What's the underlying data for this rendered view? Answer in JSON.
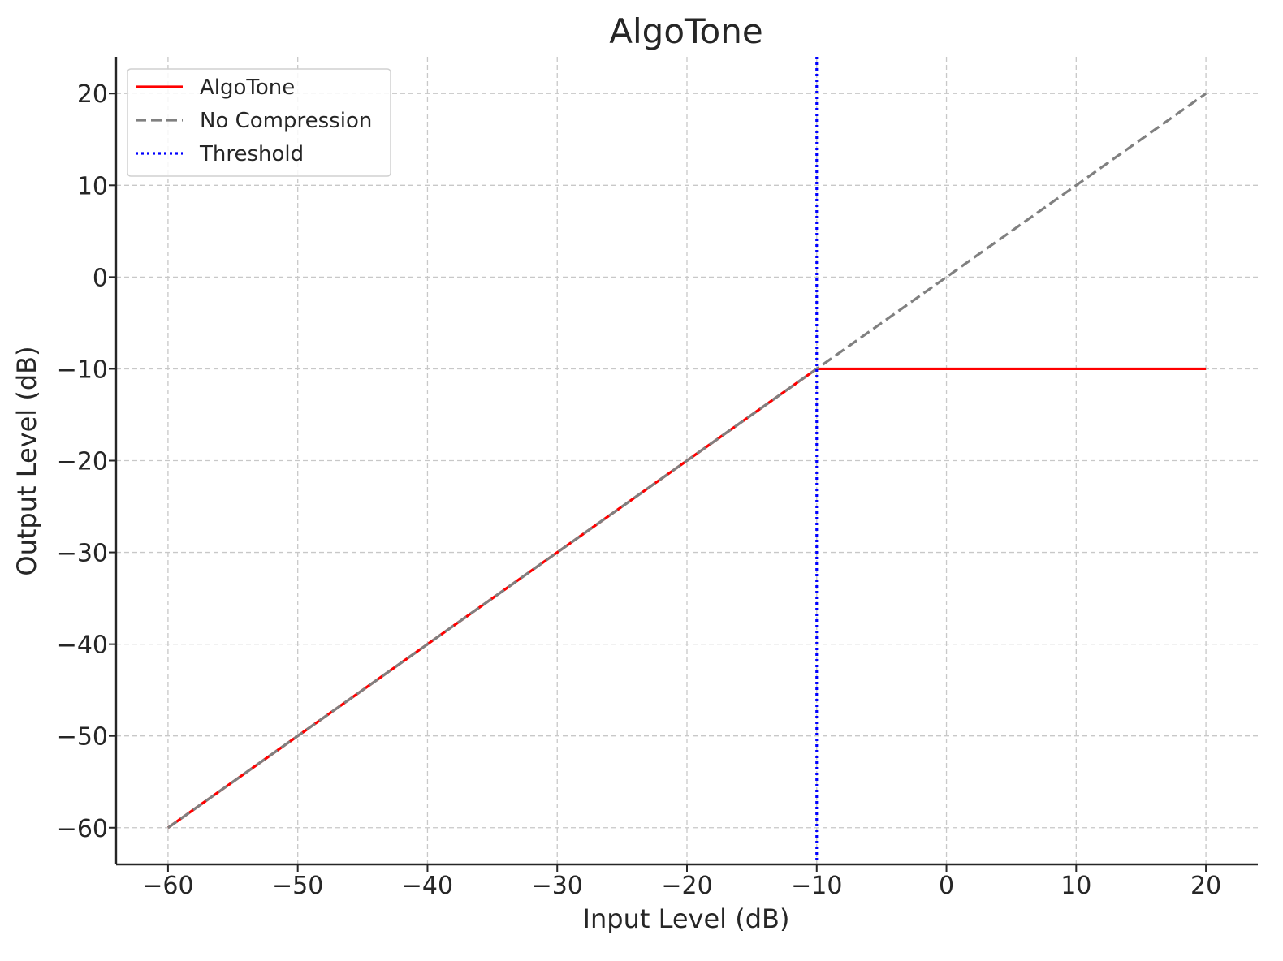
{
  "chart_data": {
    "type": "line",
    "title": "AlgoTone",
    "xlabel": "Input Level (dB)",
    "ylabel": "Output Level (dB)",
    "xlim": [
      -64,
      24
    ],
    "ylim": [
      -64,
      24
    ],
    "xticks": [
      -60,
      -50,
      -40,
      -30,
      -20,
      -10,
      0,
      10,
      20
    ],
    "yticks": [
      -60,
      -50,
      -40,
      -30,
      -20,
      -10,
      0,
      10,
      20
    ],
    "xtick_labels": [
      "−60",
      "−50",
      "−40",
      "−30",
      "−20",
      "−10",
      "0",
      "10",
      "20"
    ],
    "ytick_labels": [
      "−60",
      "−50",
      "−40",
      "−30",
      "−20",
      "−10",
      "0",
      "10",
      "20"
    ],
    "grid": true,
    "legend_position": "top-left",
    "series": [
      {
        "name": "AlgoTone",
        "color": "#ff0000",
        "style": "solid",
        "x": [
          -60,
          -10,
          20
        ],
        "y": [
          -60,
          -10,
          -10
        ]
      },
      {
        "name": "No Compression",
        "color": "#808080",
        "style": "dashed",
        "x": [
          -60,
          20
        ],
        "y": [
          -60,
          20
        ]
      }
    ],
    "vlines": [
      {
        "name": "Threshold",
        "color": "#0000ff",
        "style": "dotted",
        "x": -10
      }
    ]
  }
}
